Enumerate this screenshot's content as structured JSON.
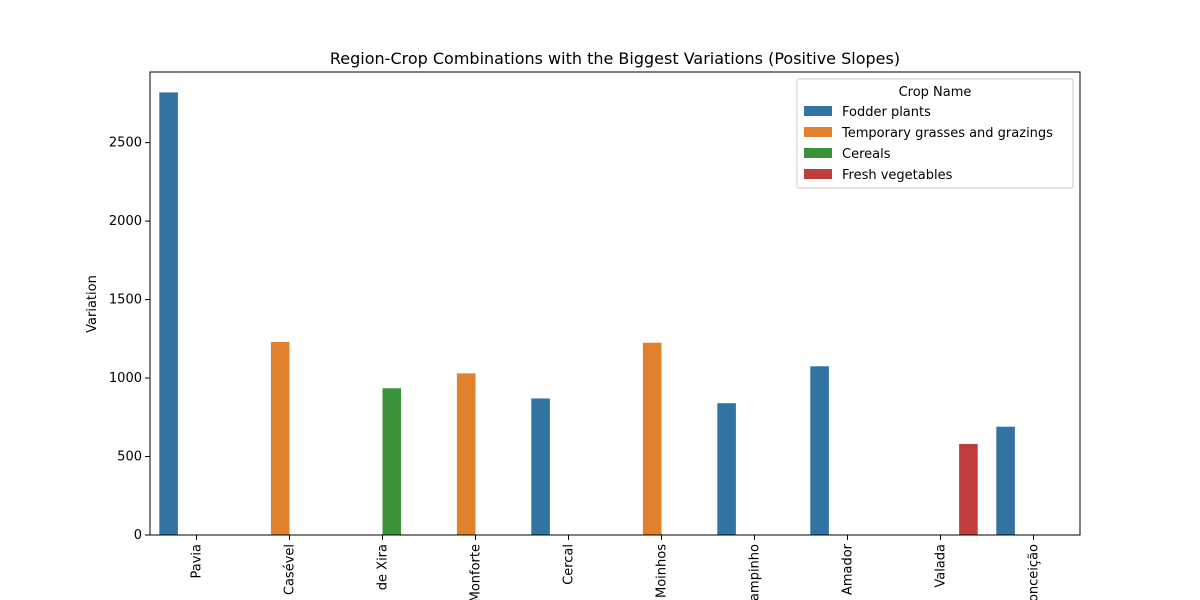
{
  "chart_data": {
    "type": "bar",
    "title": "Region-Crop Combinations with the Biggest Variations (Positive Slopes)",
    "xlabel": "",
    "ylabel": "Variation",
    "ylim": [
      0,
      2950
    ],
    "yticks": [
      0,
      500,
      1000,
      1500,
      2000,
      2500
    ],
    "categories": [
      "Pavia",
      "Casével",
      "de Xira",
      "Monforte",
      "Cercal",
      "Moinhos",
      "ampinho",
      "Amador",
      "Valada",
      "onceição"
    ],
    "legend": {
      "title": "Crop Name",
      "placement": "top-right"
    },
    "series": [
      {
        "name": "Fodder plants",
        "color": "#3274a1",
        "values": [
          2820,
          null,
          null,
          null,
          870,
          null,
          840,
          1075,
          null,
          690
        ]
      },
      {
        "name": "Temporary grasses and grazings",
        "color": "#e1812c",
        "values": [
          null,
          1230,
          null,
          1030,
          null,
          1225,
          null,
          null,
          null,
          null
        ]
      },
      {
        "name": "Cereals",
        "color": "#3a923a",
        "values": [
          null,
          null,
          935,
          null,
          null,
          null,
          null,
          null,
          null,
          null
        ]
      },
      {
        "name": "Fresh vegetables",
        "color": "#c03d3e",
        "values": [
          null,
          null,
          null,
          null,
          null,
          null,
          null,
          null,
          580,
          null
        ]
      }
    ]
  }
}
